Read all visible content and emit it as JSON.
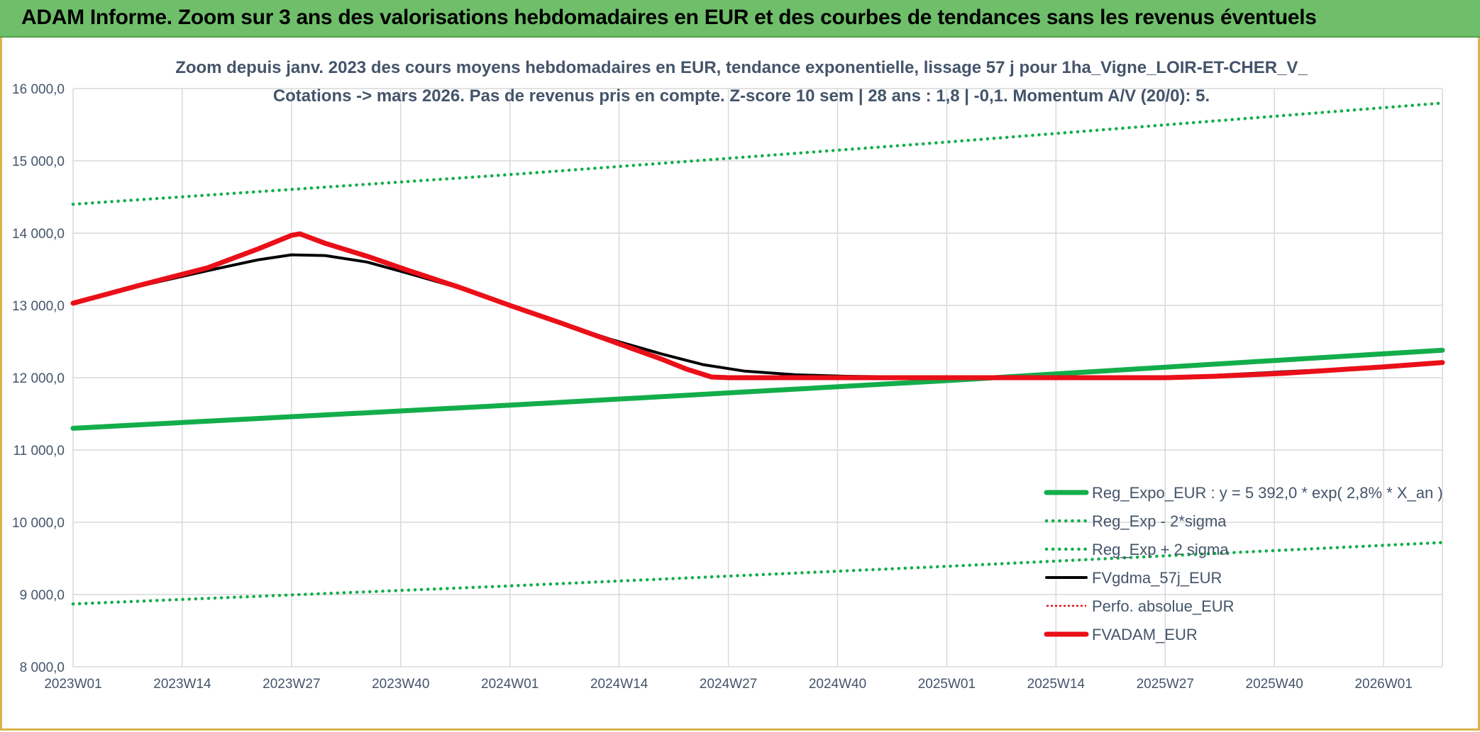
{
  "banner": {
    "title": "ADAM Informe. Zoom sur 3 ans des valorisations hebdomadaires en EUR et des courbes de tendances sans les revenus éventuels"
  },
  "colors": {
    "banner_bg": "#6fbf6a",
    "trend": "#13ad4b",
    "gdma": "#000000",
    "perfo": "#e0141a",
    "adam": "#ea0f18",
    "grid": "#d9d9d9",
    "text": "#44546a"
  },
  "chart_data": {
    "type": "line",
    "title": "Zoom depuis janv. 2023 des cours moyens hebdomadaires en EUR, tendance exponentielle, lissage 57 j pour 1ha_Vigne_LOIR-ET-CHER_V_",
    "subtitle": "Cotations -> mars 2026. Pas de revenus pris en compte. Z-score 10 sem | 28 ans : 1,8 | -0,1. Momentum A/V (20/0): 5.",
    "xlabel": "",
    "ylabel": "",
    "ylim": [
      8000,
      16000
    ],
    "yticks": [
      8000,
      9000,
      10000,
      11000,
      12000,
      13000,
      14000,
      15000,
      16000
    ],
    "ytick_labels": [
      "8 000,0",
      "9 000,0",
      "10 000,0",
      "11 000,0",
      "12 000,0",
      "13 000,0",
      "14 000,0",
      "15 000,0",
      "16 000,0"
    ],
    "x_range_weeks": [
      0,
      163
    ],
    "xtick_weeks": [
      0,
      13,
      26,
      39,
      52,
      65,
      78,
      91,
      104,
      117,
      130,
      143,
      156
    ],
    "xtick_labels": [
      "2023W01",
      "2023W14",
      "2023W27",
      "2023W40",
      "2024W01",
      "2024W14",
      "2024W27",
      "2024W40",
      "2025W01",
      "2025W14",
      "2025W27",
      "2025W40",
      "2026W01"
    ],
    "grid": true,
    "legend_position": "bottom-right",
    "series": [
      {
        "name": "Reg_Expo_EUR : y = 5 392,0 * exp( 2,8% *  X_an )",
        "style": "solid-thick",
        "color": "#13ad4b",
        "points": [
          [
            0,
            11300
          ],
          [
            52,
            11620
          ],
          [
            104,
            11960
          ],
          [
            163,
            12380
          ]
        ]
      },
      {
        "name": "Reg_Exp - 2*sigma",
        "style": "dotted",
        "color": "#13ad4b",
        "points": [
          [
            0,
            8870
          ],
          [
            52,
            9120
          ],
          [
            104,
            9390
          ],
          [
            163,
            9720
          ]
        ]
      },
      {
        "name": "Reg_Exp + 2 sigma",
        "style": "dotted",
        "color": "#13ad4b",
        "points": [
          [
            0,
            14400
          ],
          [
            52,
            14810
          ],
          [
            104,
            15260
          ],
          [
            163,
            15800
          ]
        ]
      },
      {
        "name": "FVgdma_57j_EUR",
        "style": "solid",
        "color": "#000000",
        "points": [
          [
            0,
            13030
          ],
          [
            8,
            13270
          ],
          [
            16,
            13480
          ],
          [
            22,
            13630
          ],
          [
            26,
            13700
          ],
          [
            30,
            13690
          ],
          [
            35,
            13600
          ],
          [
            40,
            13440
          ],
          [
            46,
            13240
          ],
          [
            52,
            13000
          ],
          [
            58,
            12760
          ],
          [
            64,
            12530
          ],
          [
            70,
            12330
          ],
          [
            75,
            12180
          ],
          [
            80,
            12090
          ],
          [
            86,
            12040
          ],
          [
            92,
            12020
          ],
          [
            100,
            12010
          ],
          [
            108,
            12000
          ],
          [
            120,
            12000
          ],
          [
            132,
            12010
          ],
          [
            144,
            12080
          ],
          [
            156,
            12150
          ],
          [
            163,
            12200
          ]
        ]
      },
      {
        "name": "Perfo. absolue_EUR",
        "style": "dotted-thin",
        "color": "#e0141a",
        "points": []
      },
      {
        "name": "FVADAM_EUR",
        "style": "solid-thick",
        "color": "#ea0f18",
        "points": [
          [
            0,
            13030
          ],
          [
            8,
            13280
          ],
          [
            16,
            13520
          ],
          [
            22,
            13780
          ],
          [
            26,
            13970
          ],
          [
            27,
            13990
          ],
          [
            30,
            13860
          ],
          [
            35,
            13680
          ],
          [
            40,
            13480
          ],
          [
            46,
            13250
          ],
          [
            52,
            13000
          ],
          [
            58,
            12760
          ],
          [
            64,
            12510
          ],
          [
            70,
            12260
          ],
          [
            73,
            12120
          ],
          [
            76,
            12010
          ],
          [
            78,
            12000
          ],
          [
            90,
            12000
          ],
          [
            104,
            12000
          ],
          [
            120,
            12000
          ],
          [
            130,
            12000
          ],
          [
            136,
            12020
          ],
          [
            144,
            12060
          ],
          [
            156,
            12150
          ],
          [
            163,
            12210
          ]
        ]
      }
    ]
  }
}
